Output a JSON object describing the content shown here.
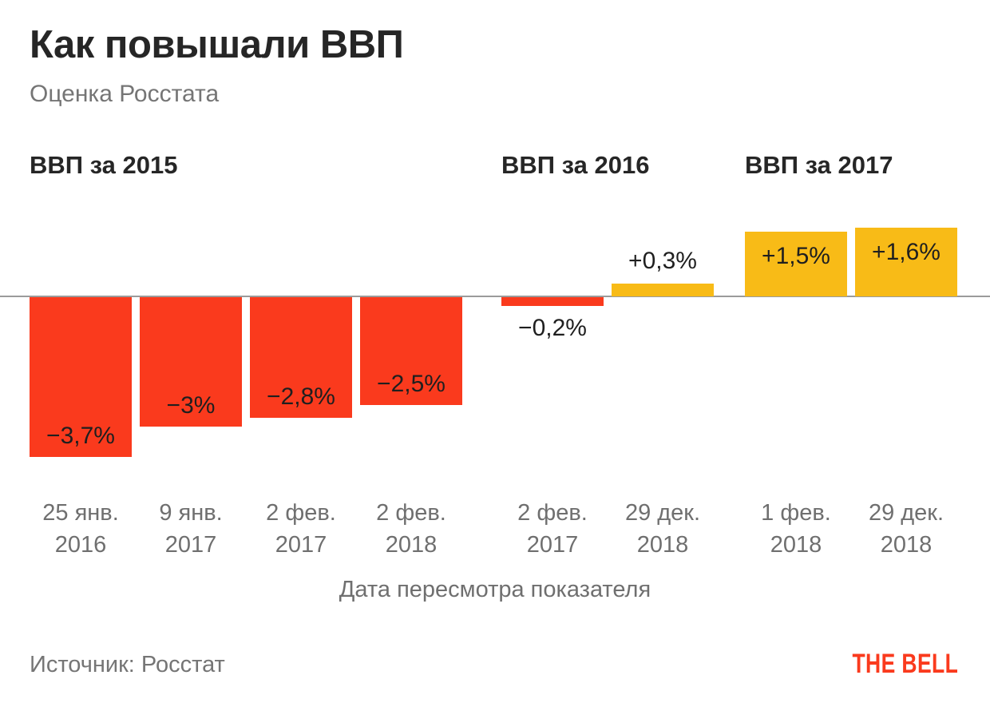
{
  "title": "Как повышали ВВП",
  "subtitle": "Оценка Росстата",
  "source": "Источник: Росстат",
  "brand": "THE BELL",
  "colors": {
    "negative": "#fa3a1d",
    "positive": "#f8bb17",
    "brand_red": "#fa3a1d",
    "axis_line": "#9b9b9b",
    "text_dark": "#262626",
    "text_gray": "#6f6f6f"
  },
  "chart_data": {
    "type": "bar",
    "title": "Как повышали ВВП",
    "subtitle": "Оценка Росстата",
    "xlabel": "Дата пересмотра показателя",
    "ylabel": "",
    "unit": "%",
    "baseline": 0,
    "grid": false,
    "legend": false,
    "groups": [
      {
        "label": "ВВП за 2015",
        "bars": [
          {
            "date": "25 янв. 2016",
            "value": -3.7,
            "value_label": "−3,7%",
            "color": "negative",
            "label_pos": "inside-bottom"
          },
          {
            "date": "9 янв. 2017",
            "value": -3.0,
            "value_label": "−3%",
            "color": "negative",
            "label_pos": "inside-bottom"
          },
          {
            "date": "2 фев. 2017",
            "value": -2.8,
            "value_label": "−2,8%",
            "color": "negative",
            "label_pos": "inside-bottom"
          },
          {
            "date": "2 фев. 2018",
            "value": -2.5,
            "value_label": "−2,5%",
            "color": "negative",
            "label_pos": "inside-bottom"
          }
        ]
      },
      {
        "label": "ВВП за 2016",
        "bars": [
          {
            "date": "2 фев. 2017",
            "value": -0.2,
            "value_label": "−0,2%",
            "color": "negative",
            "label_pos": "below"
          },
          {
            "date": "29 дек. 2018",
            "value": 0.3,
            "value_label": "+0,3%",
            "color": "positive",
            "label_pos": "above"
          }
        ]
      },
      {
        "label": "ВВП за 2017",
        "bars": [
          {
            "date": "1 фев. 2018",
            "value": 1.5,
            "value_label": "+1,5%",
            "color": "positive",
            "label_pos": "inside-top"
          },
          {
            "date": "29 дек. 2018",
            "value": 1.6,
            "value_label": "+1,6%",
            "color": "positive",
            "label_pos": "inside-top"
          }
        ]
      }
    ]
  }
}
